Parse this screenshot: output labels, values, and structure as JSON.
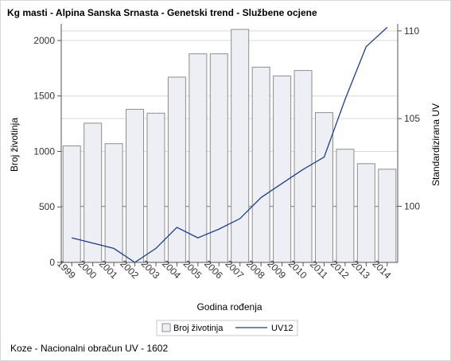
{
  "title": "Kg masti - Alpina Sanska Srnasta - Genetski trend - Službene ocjene",
  "footnote": "Koze - Nacionalni obračun UV - 1602",
  "colors": {
    "bar_fill": "#edeff4",
    "bar_stroke": "#8e8e8e",
    "line": "#1f3c8a",
    "grid": "#d9d9d9",
    "refline": "#8c8c8c"
  },
  "chart_data": {
    "type": "bar",
    "title": "Kg masti - Alpina Sanska Srnasta - Genetski trend - Službene ocjene",
    "xlabel": "Godina rođenja",
    "ylabel": "Broj životinja",
    "y2label": "Standardizirana UV",
    "categories": [
      "1999",
      "2000",
      "2001",
      "2002",
      "2003",
      "2004",
      "2005",
      "2006",
      "2007",
      "2008",
      "2009",
      "2010",
      "2011",
      "2012",
      "2013",
      "2014"
    ],
    "ylim": [
      0,
      2150
    ],
    "yticks": [
      0,
      500,
      1000,
      1500,
      2000
    ],
    "y2lim": [
      96.8,
      110.4
    ],
    "y2ticks": [
      100,
      105,
      110
    ],
    "grid": true,
    "legend_position": "bottom",
    "series": [
      {
        "name": "Broj životinja",
        "type": "bar",
        "axis": "left",
        "values": [
          1050,
          1255,
          1070,
          1380,
          1345,
          1670,
          1880,
          1880,
          2100,
          1760,
          1680,
          1730,
          1350,
          1020,
          890,
          840
        ]
      },
      {
        "name": "UV12",
        "type": "line",
        "axis": "right",
        "values": [
          98.2,
          97.9,
          97.6,
          96.8,
          97.6,
          98.8,
          98.2,
          98.7,
          99.3,
          100.5,
          101.3,
          102.1,
          102.8,
          106.1,
          109.1,
          110.2
        ]
      }
    ]
  }
}
